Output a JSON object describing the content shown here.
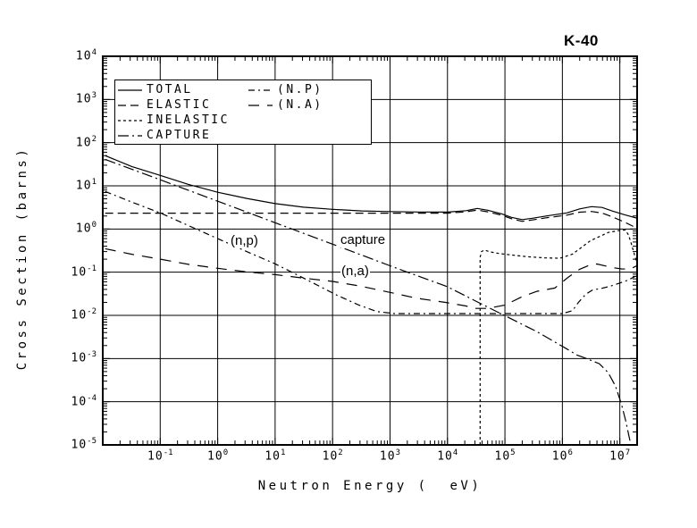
{
  "title": "K-40",
  "colors": {
    "foreground": "#000000",
    "background": "#ffffff"
  },
  "axes": {
    "xlabel": "Neutron Energy (  eV)",
    "ylabel": "Cross Section (barns)",
    "tick_label_base": "10",
    "x_tick_exponents": [
      -1,
      0,
      1,
      2,
      3,
      4,
      5,
      6,
      7
    ],
    "y_tick_exponents": [
      4,
      3,
      2,
      1,
      0,
      -1,
      -2,
      -3,
      -4,
      -5
    ],
    "x_range_exponents": [
      -2,
      7.301
    ],
    "y_range_exponents": [
      -5,
      4
    ]
  },
  "legend": {
    "columns": [
      [
        {
          "label": "TOTAL",
          "style": "solid"
        },
        {
          "label": "ELASTIC",
          "style": "dash"
        },
        {
          "label": "INELASTIC",
          "style": "dot"
        },
        {
          "label": "CAPTURE",
          "style": "dashdot"
        }
      ],
      [
        {
          "label": "(N.P)",
          "style": "npdash"
        },
        {
          "label": "(N.A)",
          "style": "nadash"
        }
      ]
    ]
  },
  "chart_data": {
    "type": "line",
    "title": "K-40",
    "xlabel": "Neutron Energy (  eV)",
    "ylabel": "Cross Section (barns)",
    "x_scale": "log",
    "y_scale": "log",
    "xlim": [
      0.01,
      20000000
    ],
    "ylim": [
      1e-05,
      10000
    ],
    "grid": true,
    "legend_position": "top-left-inside",
    "annotations": [
      {
        "text": "(n,p)",
        "x": 257,
        "y": 261
      },
      {
        "text": "capture",
        "x": 380,
        "y": 260
      },
      {
        "text": "(n,a)",
        "x": 381,
        "y": 295
      }
    ],
    "series": [
      {
        "name": "TOTAL",
        "style": "solid",
        "points": [
          [
            0.011,
            50
          ],
          [
            0.032,
            28
          ],
          [
            0.1,
            17.5
          ],
          [
            0.31,
            10.8
          ],
          [
            1,
            7.1
          ],
          [
            3.2,
            5.1
          ],
          [
            10,
            3.87
          ],
          [
            31,
            3.2
          ],
          [
            100,
            2.85
          ],
          [
            320,
            2.62
          ],
          [
            1000,
            2.54
          ],
          [
            3200,
            2.48
          ],
          [
            10000,
            2.47
          ],
          [
            21000,
            2.66
          ],
          [
            33000,
            3.0
          ],
          [
            50000,
            2.72
          ],
          [
            87000,
            2.25
          ],
          [
            130000,
            1.86
          ],
          [
            200000,
            1.65
          ],
          [
            300000,
            1.77
          ],
          [
            520000,
            2.0
          ],
          [
            1200000.0,
            2.36
          ],
          [
            2000000.0,
            2.92
          ],
          [
            3200000.0,
            3.3
          ],
          [
            4900000.0,
            3.15
          ],
          [
            7500000.0,
            2.6
          ],
          [
            12000000.0,
            2.15
          ],
          [
            20000000.0,
            1.77
          ]
        ]
      },
      {
        "name": "ELASTIC",
        "style": "dash",
        "points": [
          [
            0.011,
            2.33
          ],
          [
            1,
            2.33
          ],
          [
            100,
            2.33
          ],
          [
            10000,
            2.33
          ],
          [
            21000,
            2.5
          ],
          [
            33000,
            2.75
          ],
          [
            50000,
            2.5
          ],
          [
            87000,
            2.1
          ],
          [
            130000,
            1.73
          ],
          [
            200000,
            1.5
          ],
          [
            300000,
            1.62
          ],
          [
            520000,
            1.82
          ],
          [
            1200000.0,
            2.1
          ],
          [
            2000000.0,
            2.45
          ],
          [
            3200000.0,
            2.55
          ],
          [
            4900000.0,
            2.35
          ],
          [
            7500000.0,
            1.9
          ],
          [
            12000000.0,
            1.45
          ],
          [
            16000000.0,
            1.2
          ],
          [
            20000000.0,
            1.05
          ]
        ]
      },
      {
        "name": "INELASTIC",
        "style": "dot",
        "points": [
          [
            37000,
            1e-05
          ],
          [
            37000,
            0.22
          ],
          [
            39000,
            0.3
          ],
          [
            44000,
            0.326
          ],
          [
            56000,
            0.295
          ],
          [
            80000,
            0.27
          ],
          [
            130000,
            0.25
          ],
          [
            250000,
            0.228
          ],
          [
            500000,
            0.215
          ],
          [
            900000,
            0.21
          ],
          [
            1500000.0,
            0.263
          ],
          [
            3100000.0,
            0.54
          ],
          [
            6300000.0,
            0.83
          ],
          [
            10000000.0,
            0.93
          ],
          [
            12400000.0,
            0.95
          ],
          [
            14000000.0,
            0.75
          ],
          [
            15500000.0,
            0.51
          ],
          [
            17300000.0,
            0.3
          ],
          [
            19000000.0,
            0.196
          ],
          [
            20000000.0,
            0.155
          ]
        ]
      },
      {
        "name": "CAPTURE",
        "style": "dashdot",
        "points": [
          [
            0.011,
            41
          ],
          [
            0.1,
            13.8
          ],
          [
            1,
            4.4
          ],
          [
            10,
            1.4
          ],
          [
            100,
            0.445
          ],
          [
            1000,
            0.141
          ],
          [
            10000,
            0.046
          ],
          [
            37000,
            0.019
          ],
          [
            100000,
            0.0098
          ],
          [
            360000,
            0.0042
          ],
          [
            1170000.0,
            0.0017
          ],
          [
            1800000.0,
            0.0012
          ],
          [
            2900000.0,
            0.00095
          ],
          [
            4400000.0,
            0.00076
          ],
          [
            6300000.0,
            0.00047
          ],
          [
            8400000.0,
            0.00023
          ],
          [
            10700000.0,
            8.7e-05
          ],
          [
            12600000.0,
            3.7e-05
          ],
          [
            14500000.0,
            1.55e-05
          ],
          [
            15600000.0,
            1e-05
          ]
        ]
      },
      {
        "name": "(N.P)",
        "style": "npdash",
        "points": [
          [
            0.011,
            7.4
          ],
          [
            0.032,
            4.2
          ],
          [
            0.1,
            2.36
          ],
          [
            0.31,
            1.2
          ],
          [
            1,
            0.6
          ],
          [
            3.2,
            0.3
          ],
          [
            10,
            0.156
          ],
          [
            34,
            0.069
          ],
          [
            118,
            0.0295
          ],
          [
            286,
            0.0174
          ],
          [
            585,
            0.0123
          ],
          [
            1200,
            0.011
          ],
          [
            10000,
            0.011
          ],
          [
            100000,
            0.011
          ],
          [
            1000000.0,
            0.011
          ],
          [
            1500000.0,
            0.0129
          ],
          [
            1900000.0,
            0.02
          ],
          [
            2550000.0,
            0.031
          ],
          [
            3400000.0,
            0.039
          ],
          [
            4700000.0,
            0.042
          ],
          [
            6700000.0,
            0.047
          ],
          [
            9600000.0,
            0.055
          ],
          [
            13700000.0,
            0.065
          ],
          [
            20000000.0,
            0.084
          ]
        ]
      },
      {
        "name": "(N.A)",
        "style": "nadash",
        "points": [
          [
            0.011,
            0.35
          ],
          [
            0.032,
            0.26
          ],
          [
            0.1,
            0.2
          ],
          [
            0.31,
            0.152
          ],
          [
            1,
            0.123
          ],
          [
            3.2,
            0.102
          ],
          [
            10,
            0.088
          ],
          [
            34,
            0.072
          ],
          [
            100,
            0.061
          ],
          [
            320,
            0.047
          ],
          [
            1000,
            0.034
          ],
          [
            2900,
            0.025
          ],
          [
            9300,
            0.02
          ],
          [
            21000,
            0.0165
          ],
          [
            30000,
            0.0145
          ],
          [
            50000,
            0.0145
          ],
          [
            100000,
            0.0173
          ],
          [
            197000,
            0.027
          ],
          [
            360000,
            0.036
          ],
          [
            740000,
            0.043
          ],
          [
            1260000.0,
            0.076
          ],
          [
            2000000.0,
            0.117
          ],
          [
            3100000.0,
            0.148
          ],
          [
            4000000.0,
            0.155
          ],
          [
            7400000.0,
            0.128
          ],
          [
            10700000.0,
            0.119
          ],
          [
            15000000.0,
            0.118
          ],
          [
            20000000.0,
            0.142
          ]
        ]
      }
    ]
  }
}
